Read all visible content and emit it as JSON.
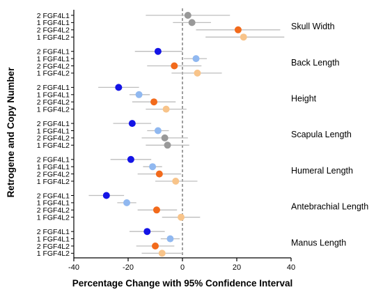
{
  "chart_data": {
    "type": "scatter",
    "subtype": "forest-plot",
    "xlabel": "Percentage Change with 95% Confidence Interval",
    "ylabel": "Retrogene and Copy Number",
    "xlim": [
      -40,
      40
    ],
    "xticks": [
      -40,
      -20,
      0,
      20,
      40
    ],
    "reference_line": {
      "x": 0,
      "style": "dashed"
    },
    "grid": false,
    "legend": "none",
    "colors": {
      "2 FGF4L1": "#1414e6",
      "1 FGF4L1": "#90b8f0",
      "2 FGF4L2": "#f26a1b",
      "1 FGF4L2": "#f8c48a",
      "neutral": "#999999",
      "ci_line": "#bdbdbd"
    },
    "groups": [
      {
        "name": "Skull Width",
        "rows": [
          {
            "label": "2 FGF4L1",
            "estimate": 2,
            "ci": [
              -13.5,
              17.5
            ],
            "color": "neutral"
          },
          {
            "label": "1 FGF4L1",
            "estimate": 3.5,
            "ci": [
              -3.5,
              10.5
            ],
            "color": "neutral"
          },
          {
            "label": "2 FGF4L2",
            "estimate": 20.5,
            "ci": [
              5,
              36
            ],
            "color": "2 FGF4L2"
          },
          {
            "label": "1 FGF4L2",
            "estimate": 22.5,
            "ci": [
              8.5,
              37.5
            ],
            "color": "1 FGF4L2"
          }
        ]
      },
      {
        "name": "Back Length",
        "rows": [
          {
            "label": "2 FGF4L1",
            "estimate": -9,
            "ci": [
              -17.5,
              0
            ],
            "color": "2 FGF4L1"
          },
          {
            "label": "1 FGF4L1",
            "estimate": 5,
            "ci": [
              0.5,
              9
            ],
            "color": "1 FGF4L1"
          },
          {
            "label": "2 FGF4L2",
            "estimate": -3,
            "ci": [
              -13,
              7
            ],
            "color": "2 FGF4L2"
          },
          {
            "label": "1 FGF4L2",
            "estimate": 5.5,
            "ci": [
              -4,
              14.5
            ],
            "color": "1 FGF4L2"
          }
        ]
      },
      {
        "name": "Height",
        "rows": [
          {
            "label": "2 FGF4L1",
            "estimate": -23.5,
            "ci": [
              -31,
              -16
            ],
            "color": "2 FGF4L1"
          },
          {
            "label": "1 FGF4L1",
            "estimate": -16,
            "ci": [
              -19.5,
              -12
            ],
            "color": "1 FGF4L1"
          },
          {
            "label": "2 FGF4L2",
            "estimate": -10.5,
            "ci": [
              -18.5,
              -2.5
            ],
            "color": "2 FGF4L2"
          },
          {
            "label": "1 FGF4L2",
            "estimate": -6,
            "ci": [
              -13.5,
              1.5
            ],
            "color": "1 FGF4L2"
          }
        ]
      },
      {
        "name": "Scapula Length",
        "rows": [
          {
            "label": "2 FGF4L1",
            "estimate": -18.5,
            "ci": [
              -25.5,
              -11.5
            ],
            "color": "2 FGF4L1"
          },
          {
            "label": "1 FGF4L1",
            "estimate": -9,
            "ci": [
              -13,
              -5
            ],
            "color": "1 FGF4L1"
          },
          {
            "label": "2 FGF4L2",
            "estimate": -6.5,
            "ci": [
              -15,
              2
            ],
            "color": "neutral"
          },
          {
            "label": "1 FGF4L2",
            "estimate": -5.5,
            "ci": [
              -13.5,
              2.5
            ],
            "color": "neutral"
          }
        ]
      },
      {
        "name": "Humeral Length",
        "rows": [
          {
            "label": "2 FGF4L1",
            "estimate": -19,
            "ci": [
              -26.5,
              -11.5
            ],
            "color": "2 FGF4L1"
          },
          {
            "label": "1 FGF4L1",
            "estimate": -11,
            "ci": [
              -14.5,
              -7.5
            ],
            "color": "1 FGF4L1"
          },
          {
            "label": "2 FGF4L2",
            "estimate": -8.5,
            "ci": [
              -16.5,
              -0.5
            ],
            "color": "2 FGF4L2"
          },
          {
            "label": "1 FGF4L2",
            "estimate": -2.5,
            "ci": [
              -10,
              5.5
            ],
            "color": "1 FGF4L2"
          }
        ]
      },
      {
        "name": "Antebrachial Length",
        "rows": [
          {
            "label": "2 FGF4L1",
            "estimate": -28,
            "ci": [
              -34.5,
              -21.5
            ],
            "color": "2 FGF4L1"
          },
          {
            "label": "1 FGF4L1",
            "estimate": -20.5,
            "ci": [
              -24,
              -17
            ],
            "color": "1 FGF4L1"
          },
          {
            "label": "2 FGF4L2",
            "estimate": -9.5,
            "ci": [
              -16.5,
              -2
            ],
            "color": "2 FGF4L2"
          },
          {
            "label": "1 FGF4L2",
            "estimate": -0.5,
            "ci": [
              -7.5,
              6.5
            ],
            "color": "1 FGF4L2"
          }
        ]
      },
      {
        "name": "Manus Length",
        "rows": [
          {
            "label": "2 FGF4L1",
            "estimate": -13,
            "ci": [
              -19.5,
              -6.5
            ],
            "color": "2 FGF4L1"
          },
          {
            "label": "1 FGF4L1",
            "estimate": -4.5,
            "ci": [
              -8,
              -1
            ],
            "color": "1 FGF4L1"
          },
          {
            "label": "2 FGF4L2",
            "estimate": -10,
            "ci": [
              -17,
              -3
            ],
            "color": "2 FGF4L2"
          },
          {
            "label": "1 FGF4L2",
            "estimate": -7.5,
            "ci": [
              -15,
              0
            ],
            "color": "1 FGF4L2"
          }
        ]
      }
    ]
  }
}
